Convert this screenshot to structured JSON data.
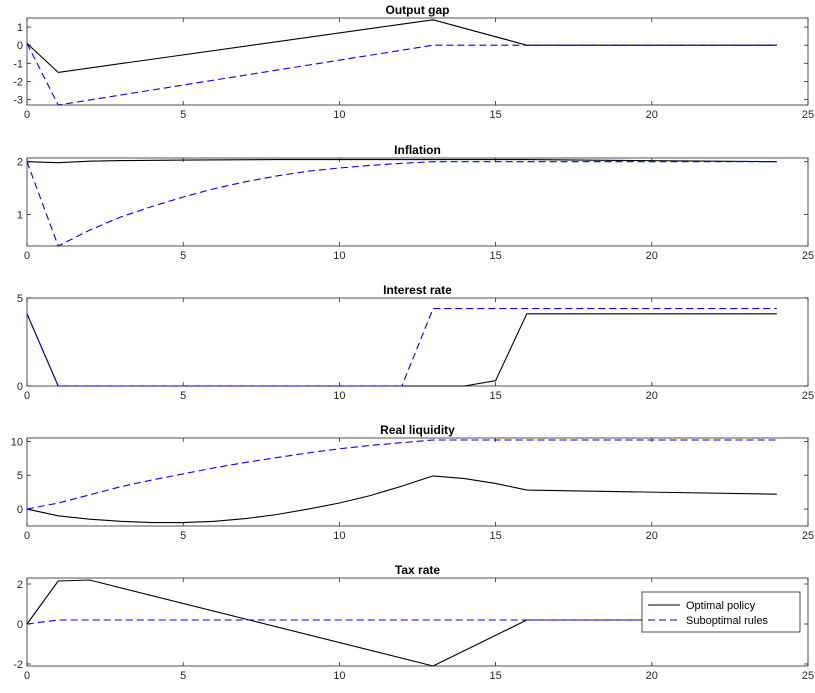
{
  "chart_data": [
    {
      "type": "line",
      "title": "Output gap",
      "xlim": [
        0,
        25
      ],
      "ylim": [
        -3.3,
        1.5
      ],
      "xticks": [
        0,
        5,
        10,
        15,
        20,
        25
      ],
      "yticks": [
        -3,
        -2,
        -1,
        0,
        1
      ],
      "series": [
        {
          "name": "Optimal policy",
          "x": [
            0,
            1,
            13,
            16,
            24
          ],
          "y": [
            0.1,
            -1.5,
            1.4,
            0.0,
            0.0
          ]
        },
        {
          "name": "Suboptimal rules",
          "x": [
            0,
            1,
            13,
            24
          ],
          "y": [
            0.1,
            -3.3,
            0.0,
            0.0
          ]
        }
      ]
    },
    {
      "type": "line",
      "title": "Inflation",
      "xlim": [
        0,
        25
      ],
      "ylim": [
        0.4,
        2.07
      ],
      "xticks": [
        0,
        5,
        10,
        15,
        20,
        25
      ],
      "yticks": [
        1,
        2
      ],
      "series": [
        {
          "name": "Optimal policy",
          "x": [
            0,
            1,
            2,
            3,
            5,
            8,
            13,
            16,
            24
          ],
          "y": [
            2.0,
            1.98,
            2.01,
            2.02,
            2.03,
            2.04,
            2.04,
            2.04,
            2.0
          ]
        },
        {
          "name": "Suboptimal rules",
          "x": [
            0,
            1,
            2,
            3,
            4,
            5,
            6,
            7,
            8,
            9,
            10,
            11,
            12,
            13,
            14,
            24
          ],
          "y": [
            2.0,
            0.4,
            0.7,
            0.95,
            1.15,
            1.33,
            1.49,
            1.62,
            1.73,
            1.82,
            1.88,
            1.93,
            1.97,
            2.0,
            2.0,
            2.0
          ]
        }
      ]
    },
    {
      "type": "line",
      "title": "Interest rate",
      "xlim": [
        0,
        25
      ],
      "ylim": [
        0,
        5
      ],
      "xticks": [
        0,
        5,
        10,
        15,
        20,
        25
      ],
      "yticks": [
        0,
        5
      ],
      "series": [
        {
          "name": "Optimal policy",
          "x": [
            0,
            1,
            14,
            15,
            16,
            24
          ],
          "y": [
            4.1,
            0.0,
            0.0,
            0.3,
            4.1,
            4.1
          ]
        },
        {
          "name": "Suboptimal rules",
          "x": [
            0,
            1,
            12,
            13,
            24
          ],
          "y": [
            4.1,
            0.0,
            0.0,
            4.4,
            4.4
          ]
        }
      ]
    },
    {
      "type": "line",
      "title": "Real liquidity",
      "xlim": [
        0,
        25
      ],
      "ylim": [
        -2.5,
        10.5
      ],
      "xticks": [
        0,
        5,
        10,
        15,
        20,
        25
      ],
      "yticks": [
        0,
        5,
        10
      ],
      "series": [
        {
          "name": "Optimal policy",
          "x": [
            0,
            1,
            2,
            3,
            4,
            5,
            6,
            7,
            8,
            9,
            10,
            11,
            12,
            13,
            14,
            15,
            16,
            24
          ],
          "y": [
            0.0,
            -1.0,
            -1.5,
            -1.8,
            -2.0,
            -2.0,
            -1.8,
            -1.4,
            -0.8,
            0.0,
            0.9,
            2.0,
            3.4,
            4.9,
            4.5,
            3.8,
            2.8,
            2.2
          ]
        },
        {
          "name": "Suboptimal rules",
          "x": [
            0,
            1,
            2,
            3,
            4,
            5,
            6,
            7,
            8,
            9,
            10,
            11,
            12,
            13,
            24
          ],
          "y": [
            0.0,
            0.9,
            2.1,
            3.3,
            4.3,
            5.2,
            6.1,
            6.9,
            7.6,
            8.3,
            8.9,
            9.4,
            9.8,
            10.2,
            10.2
          ]
        }
      ]
    },
    {
      "type": "line",
      "title": "Tax rate",
      "xlim": [
        0,
        25
      ],
      "ylim": [
        -2.1,
        2.3
      ],
      "xticks": [
        0,
        5,
        10,
        15,
        20,
        25
      ],
      "yticks": [
        -2,
        0,
        2
      ],
      "series": [
        {
          "name": "Optimal policy",
          "x": [
            0,
            1,
            2,
            13,
            16,
            24
          ],
          "y": [
            0.0,
            2.15,
            2.2,
            -2.1,
            0.2,
            0.2
          ]
        },
        {
          "name": "Suboptimal rules",
          "x": [
            0,
            1,
            24
          ],
          "y": [
            0.0,
            0.2,
            0.2
          ]
        }
      ]
    }
  ],
  "legend": {
    "placement": "inside-right of last panel",
    "entries": [
      "Optimal policy",
      "Suboptimal rules"
    ]
  },
  "colors": {
    "optimal": "#000000",
    "suboptimal": "#0000ff"
  }
}
